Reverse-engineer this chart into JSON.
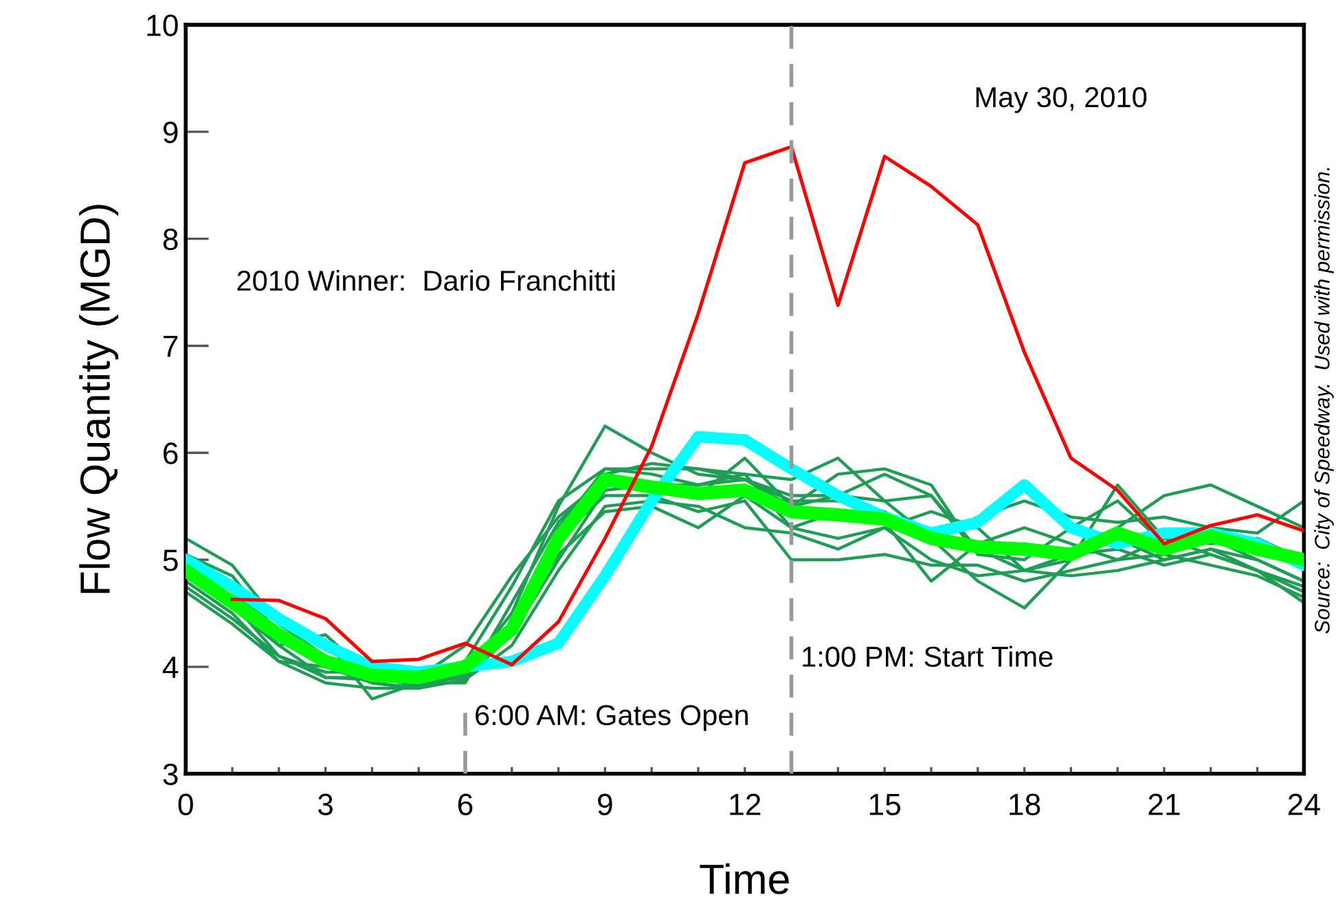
{
  "chart_data": {
    "type": "line",
    "xlabel": "Time",
    "ylabel": "Flow Quantity (MGD)",
    "x": [
      0,
      1,
      2,
      3,
      4,
      5,
      6,
      7,
      8,
      9,
      10,
      11,
      12,
      13,
      14,
      15,
      16,
      17,
      18,
      19,
      20,
      21,
      22,
      23,
      24
    ],
    "xlim": [
      0,
      24
    ],
    "ylim": [
      3,
      10
    ],
    "xticks": [
      0,
      {
        "value": 1,
        "label": null
      },
      {
        "value": 2,
        "label": null
      },
      3,
      {
        "value": 4,
        "label": null
      },
      {
        "value": 5,
        "label": null
      },
      6,
      {
        "value": 7,
        "label": null
      },
      {
        "value": 8,
        "label": null
      },
      9,
      {
        "value": 10,
        "label": null
      },
      {
        "value": 11,
        "label": null
      },
      12,
      {
        "value": 13,
        "label": null
      },
      {
        "value": 14,
        "label": null
      },
      15,
      {
        "value": 16,
        "label": null
      },
      {
        "value": 17,
        "label": null
      },
      18,
      {
        "value": 19,
        "label": null
      },
      {
        "value": 20,
        "label": null
      },
      21,
      {
        "value": 22,
        "label": null
      },
      {
        "value": 23,
        "label": null
      },
      24
    ],
    "yticks": [
      3,
      4,
      5,
      6,
      7,
      8,
      9,
      10
    ],
    "grid": false,
    "legend": false,
    "marker": "none",
    "line_style": "solid",
    "series": [
      {
        "color": "#1e9e55",
        "values": [
          5.2,
          4.95,
          4.4,
          4.1,
          3.85,
          3.8,
          3.95,
          4.5,
          5.5,
          6.25,
          6.0,
          5.8,
          5.75,
          5.5,
          5.6,
          5.8,
          5.6,
          5.1,
          4.9,
          5.0,
          5.3,
          5.6,
          5.7,
          5.5,
          5.3
        ]
      },
      {
        "color": "#1e9e55",
        "values": [
          5.05,
          4.85,
          4.3,
          4.25,
          3.7,
          3.85,
          3.9,
          4.3,
          5.3,
          5.85,
          5.85,
          5.85,
          5.8,
          5.75,
          5.95,
          5.55,
          5.2,
          4.8,
          4.55,
          5.0,
          5.2,
          5.0,
          5.1,
          5.0,
          4.8
        ]
      },
      {
        "color": "#1e9e55",
        "values": [
          4.8,
          4.5,
          4.05,
          4.0,
          3.85,
          3.8,
          3.88,
          4.2,
          4.9,
          5.5,
          5.55,
          5.5,
          5.3,
          5.25,
          5.1,
          5.3,
          5.45,
          5.3,
          4.9,
          4.85,
          4.9,
          5.0,
          5.1,
          4.9,
          4.6
        ]
      },
      {
        "color": "#1e9e55",
        "values": [
          4.9,
          4.6,
          4.1,
          3.9,
          3.88,
          3.85,
          3.85,
          4.6,
          5.35,
          5.8,
          5.9,
          5.85,
          5.75,
          5.6,
          5.6,
          5.55,
          5.6,
          5.05,
          5.15,
          5.0,
          5.7,
          5.2,
          5.05,
          4.9,
          4.75
        ]
      },
      {
        "color": "#1e9e55",
        "values": [
          4.85,
          4.55,
          4.2,
          4.3,
          3.9,
          3.95,
          4.05,
          4.75,
          5.55,
          5.85,
          5.8,
          5.7,
          5.75,
          5.55,
          5.55,
          5.45,
          5.2,
          5.4,
          5.55,
          5.4,
          5.35,
          5.4,
          5.3,
          5.25,
          5.55
        ]
      },
      {
        "color": "#1e9e55",
        "values": [
          4.75,
          4.45,
          4.1,
          3.95,
          3.95,
          3.85,
          4.0,
          4.4,
          5.05,
          5.45,
          5.5,
          5.3,
          5.6,
          5.3,
          5.2,
          5.3,
          5.0,
          4.85,
          4.9,
          5.05,
          5.1,
          4.95,
          5.05,
          4.9,
          4.7
        ]
      },
      {
        "color": "#1e9e55",
        "values": [
          5.0,
          4.7,
          4.35,
          4.0,
          3.95,
          3.9,
          4.2,
          4.85,
          5.4,
          5.75,
          5.65,
          5.6,
          5.95,
          5.5,
          5.8,
          5.85,
          5.7,
          5.05,
          5.0,
          5.3,
          5.55,
          5.15,
          5.2,
          5.0,
          4.8
        ]
      },
      {
        "color": "#1e9e55",
        "values": [
          4.7,
          4.4,
          4.05,
          3.85,
          3.8,
          3.8,
          3.95,
          4.35,
          5.2,
          5.6,
          5.6,
          5.45,
          5.55,
          5.0,
          5.0,
          5.05,
          4.95,
          4.95,
          4.8,
          4.9,
          5.0,
          5.05,
          4.95,
          4.85,
          4.65
        ]
      },
      {
        "color": "#1e9e55",
        "values": [
          4.95,
          4.65,
          4.2,
          3.9,
          3.9,
          3.82,
          3.92,
          4.3,
          5.0,
          5.65,
          5.7,
          5.7,
          5.8,
          5.3,
          5.45,
          5.35,
          4.8,
          5.15,
          5.3,
          5.15,
          5.0,
          5.2,
          5.15,
          5.2,
          5.0
        ]
      },
      {
        "color": "#00ffff",
        "values": [
          5.0,
          4.75,
          4.45,
          4.2,
          4.0,
          3.95,
          4.0,
          4.05,
          4.22,
          4.85,
          5.55,
          6.15,
          6.12,
          5.85,
          5.6,
          5.4,
          5.25,
          5.35,
          5.7,
          5.3,
          5.15,
          5.25,
          5.25,
          5.15,
          4.95
        ]
      },
      {
        "color": "#00ff00",
        "values": [
          4.9,
          4.6,
          4.3,
          4.05,
          3.92,
          3.9,
          4.0,
          4.35,
          5.2,
          5.75,
          5.68,
          5.62,
          5.65,
          5.45,
          5.42,
          5.38,
          5.2,
          5.12,
          5.1,
          5.05,
          5.25,
          5.1,
          5.22,
          5.1,
          5.0
        ]
      },
      {
        "color": "#ff0000",
        "values": [
          null,
          4.63,
          4.62,
          4.45,
          4.05,
          4.07,
          4.22,
          4.02,
          4.42,
          5.2,
          6.06,
          7.3,
          8.71,
          8.86,
          7.38,
          8.77,
          8.49,
          8.13,
          6.94,
          5.95,
          5.65,
          5.15,
          5.32,
          5.42,
          5.27
        ]
      }
    ],
    "ref_lines": [
      {
        "axis": "x",
        "value": 6,
        "color": "#999999",
        "line_style": "dashed"
      },
      {
        "axis": "x",
        "value": 13,
        "color": "#999999",
        "line_style": "dashed"
      }
    ],
    "annotations": [
      "2010 Winner:  Dario Franchitti",
      "May 30, 2010",
      "Source:  City of Speedway.  Used with permission.",
      "6:00 AM: Gates Open",
      "1:00 PM: Start Time"
    ]
  }
}
